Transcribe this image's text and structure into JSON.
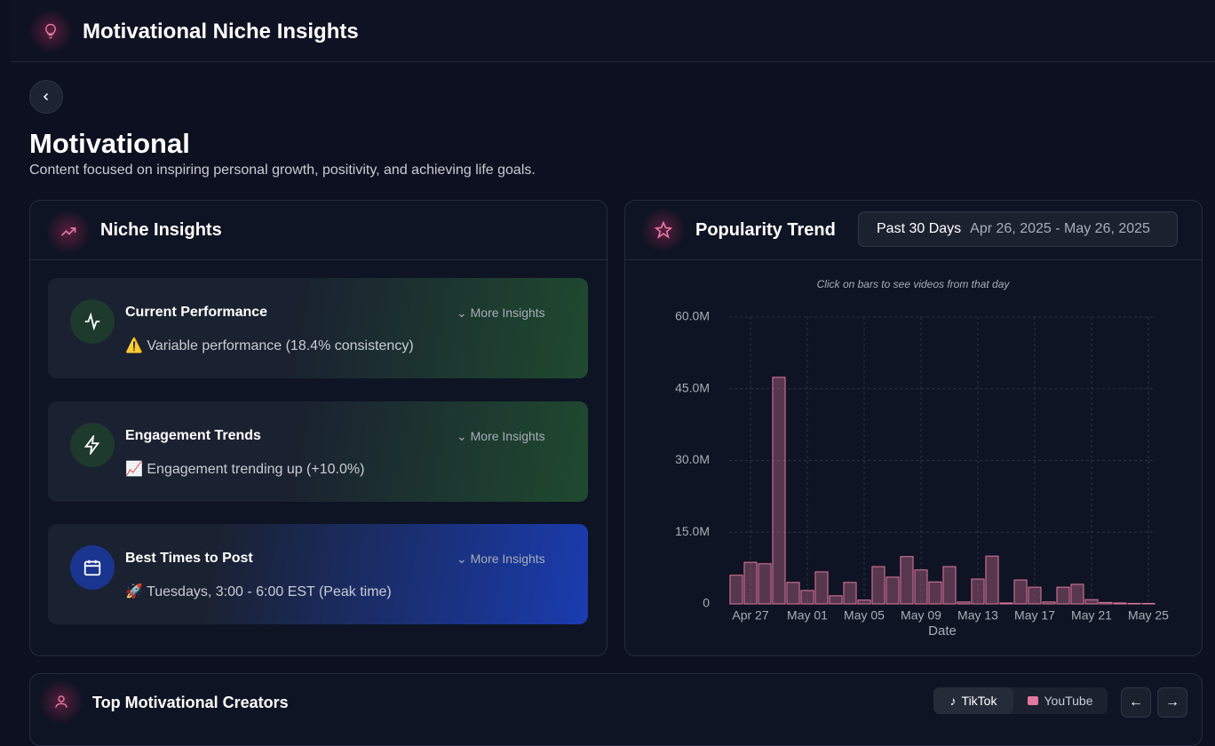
{
  "header": {
    "title": "Motivational Niche Insights"
  },
  "page": {
    "title": "Motivational",
    "description": "Content focused on inspiring personal growth, positivity, and achieving life goals."
  },
  "insights": {
    "title": "Niche Insights",
    "cards": [
      {
        "title": "Current Performance",
        "text": "⚠️ Variable performance (18.4% consistency)",
        "more": "More Insights"
      },
      {
        "title": "Engagement Trends",
        "text": "📈 Engagement trending up (+10.0%)",
        "more": "More Insights"
      },
      {
        "title": "Best Times to Post",
        "text": "🚀 Tuesdays, 3:00 - 6:00 EST (Peak time)",
        "more": "More Insights"
      }
    ]
  },
  "trend": {
    "title": "Popularity Trend",
    "range": "Past 30 Days",
    "dates": "Apr 26, 2025 - May 26, 2025",
    "hint": "Click on bars to see videos from that day"
  },
  "chart_data": {
    "type": "bar",
    "x_label": "Date",
    "categories": [
      null,
      "Apr 27",
      null,
      null,
      null,
      "May 01",
      null,
      null,
      null,
      "May 05",
      null,
      null,
      null,
      "May 09",
      null,
      null,
      null,
      "May 13",
      null,
      null,
      null,
      "May 17",
      null,
      null,
      null,
      "May 21",
      null,
      null,
      null,
      "May 25"
    ],
    "values": [
      6.0,
      8.7,
      8.4,
      47.4,
      4.5,
      2.8,
      6.7,
      1.7,
      4.5,
      0.8,
      7.8,
      5.6,
      9.9,
      7.1,
      4.6,
      7.8,
      0.4,
      5.2,
      10.0,
      0.2,
      5.0,
      3.5,
      0.4,
      3.5,
      4.1,
      0.9,
      0.3,
      0.2,
      0.1,
      0.1
    ],
    "color": "#e0789f",
    "ylim": [
      0,
      60
    ],
    "yticks": [
      0,
      {
        "value": 15,
        "label": "15.0M"
      },
      {
        "value": 30,
        "label": "30.0M"
      },
      {
        "value": 45,
        "label": "45.0M"
      },
      {
        "value": 60,
        "label": "60.0M"
      }
    ],
    "grid": true
  },
  "creators": {
    "title": "Top Motivational Creators",
    "tabs": [
      "TikTok",
      "YouTube"
    ]
  }
}
